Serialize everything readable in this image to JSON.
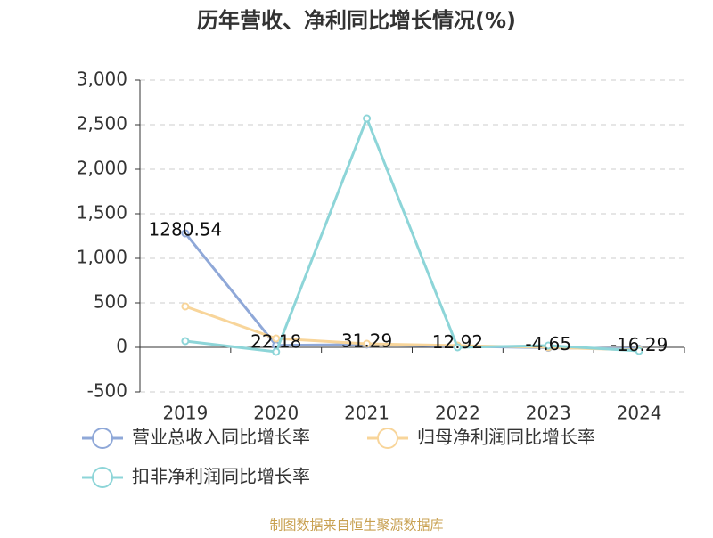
{
  "chart_data": {
    "type": "line",
    "title": "历年营收、净利同比增长情况(%)",
    "categories": [
      "2019",
      "2020",
      "2021",
      "2022",
      "2023",
      "2024"
    ],
    "series": [
      {
        "name": "营业总收入同比增长率",
        "color": "#8fa8d8",
        "values": [
          1280.54,
          22.18,
          31.29,
          12.92,
          -4.65,
          -16.29
        ]
      },
      {
        "name": "归母净利润同比增长率",
        "color": "#f8d59a",
        "values": [
          460,
          100,
          40,
          20,
          0,
          -30
        ]
      },
      {
        "name": "扣非净利润同比增长率",
        "color": "#8dd5d8",
        "values": [
          70,
          -50,
          2570,
          0,
          20,
          -40
        ]
      }
    ],
    "data_labels_series": 0,
    "ylim": [
      -500,
      3000
    ],
    "yticks": [
      -500,
      0,
      500,
      {
        "value": 1000,
        "label": "1,000"
      },
      {
        "value": 1500,
        "label": "1,500"
      },
      {
        "value": 2000,
        "label": "2,000"
      },
      {
        "value": 2500,
        "label": "2,500"
      },
      {
        "value": 3000,
        "label": "3,000"
      }
    ],
    "grid": true,
    "source": "制图数据来自恒生聚源数据库"
  }
}
